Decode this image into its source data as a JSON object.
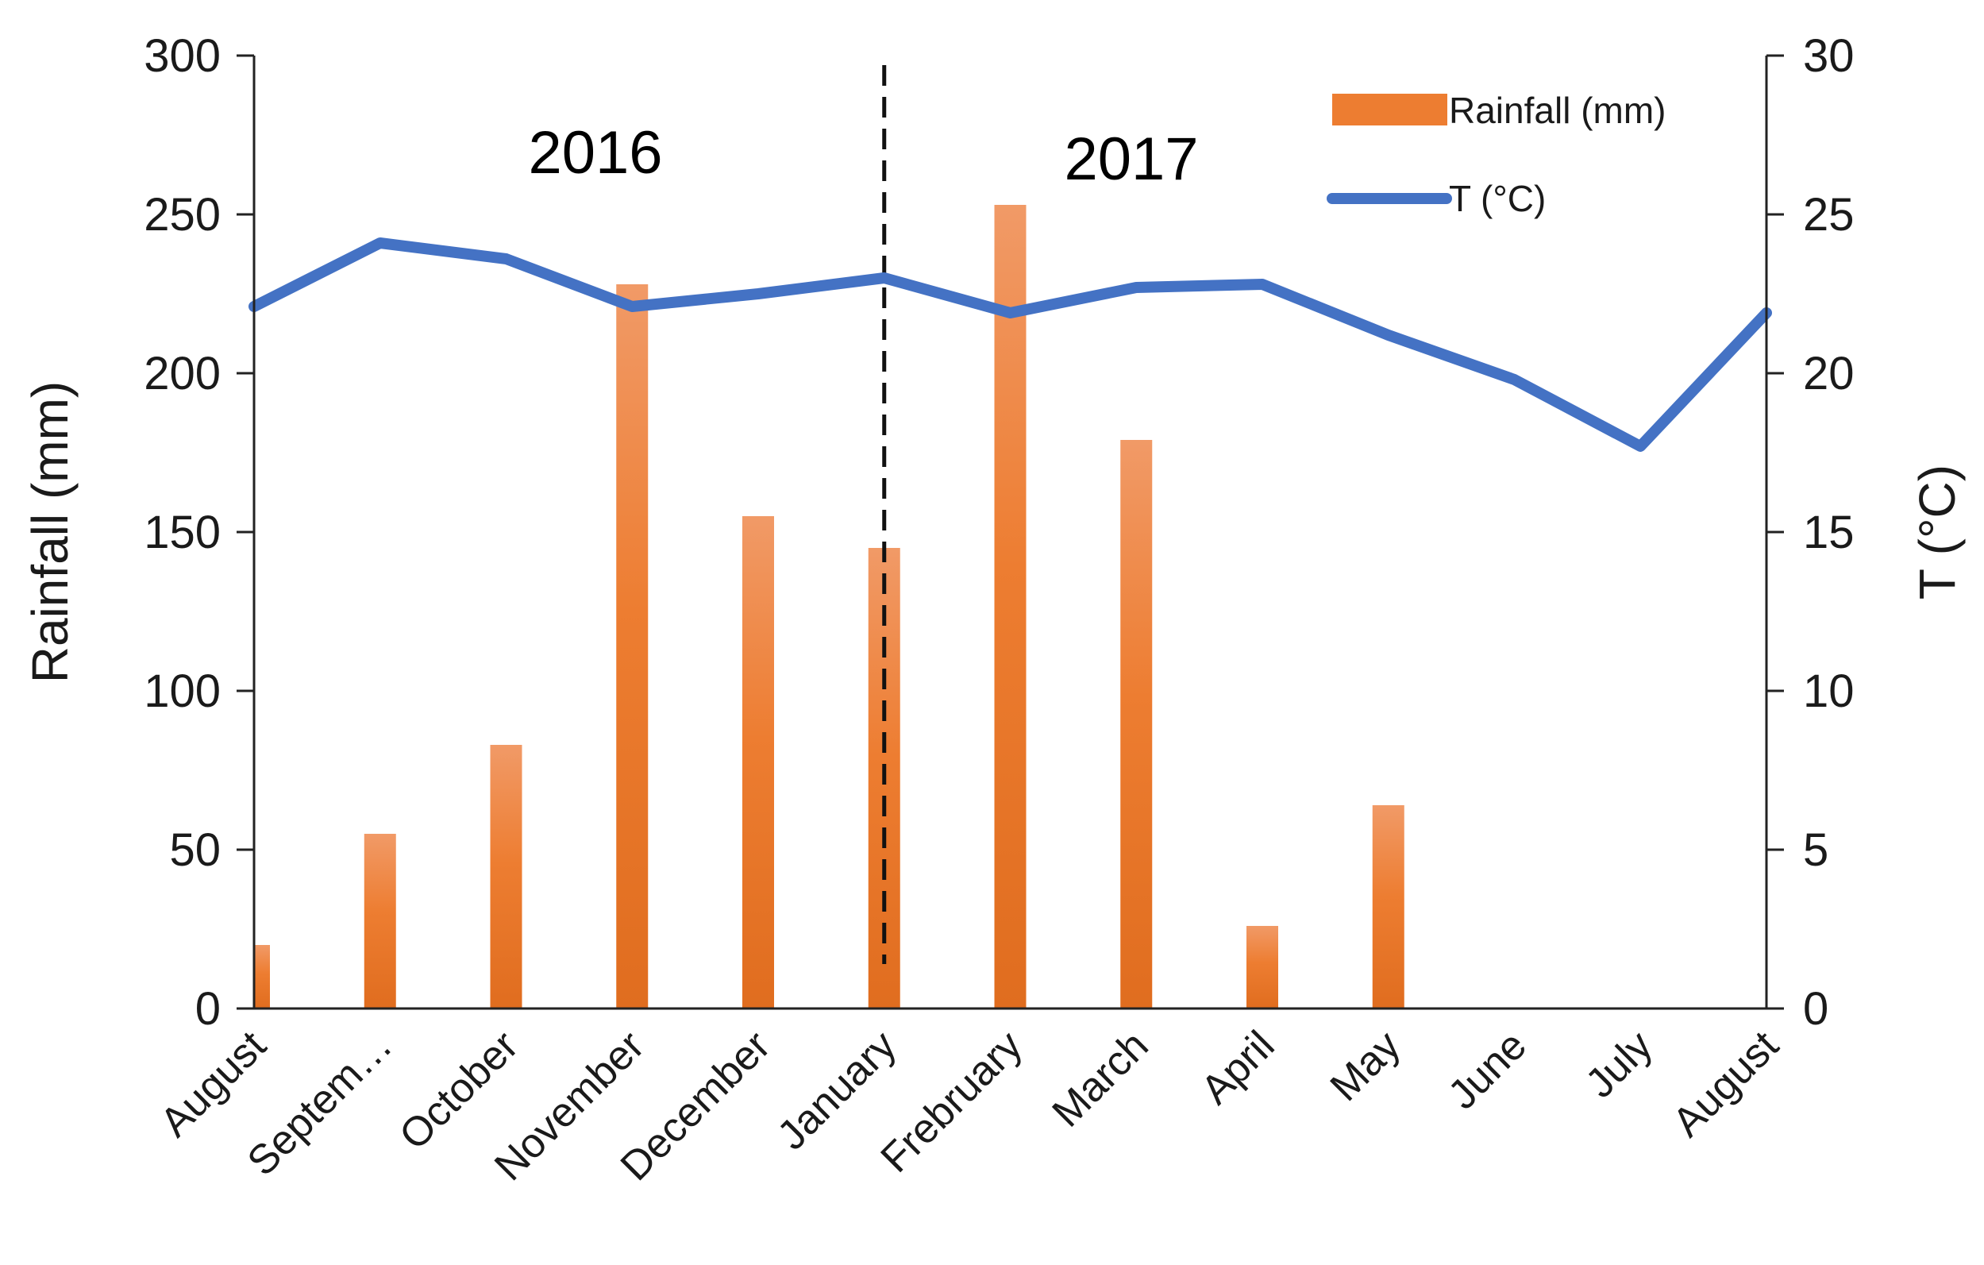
{
  "chart_data": {
    "type": "bar",
    "categories": [
      "August",
      "Septem…",
      "October",
      "November",
      "December",
      "January",
      "Frebruary",
      "March",
      "April",
      "May",
      "June",
      "July",
      "August"
    ],
    "series": [
      {
        "name": "Rainfall (mm)",
        "type": "bar",
        "axis": "left",
        "color": "#ed7d31",
        "values": [
          20,
          55,
          83,
          228,
          155,
          145,
          253,
          179,
          26,
          64,
          0,
          0,
          0
        ]
      },
      {
        "name": "T (°C)",
        "type": "line",
        "axis": "right",
        "color": "#4472c4",
        "values": [
          22.1,
          24.1,
          23.6,
          22.1,
          22.5,
          23.0,
          21.9,
          22.7,
          22.8,
          21.2,
          19.8,
          17.7,
          21.9
        ]
      }
    ],
    "ylabel": "Rainfall (mm)",
    "ylabel_right": "T (°C)",
    "ylim": [
      0,
      300
    ],
    "ylim_right": [
      0,
      30
    ],
    "yticks": [
      "0",
      "50",
      "100",
      "150",
      "200",
      "250",
      "300"
    ],
    "yticks_right": [
      "0",
      "5",
      "10",
      "15",
      "20",
      "25",
      "30"
    ],
    "annotations": [
      "2016",
      "2017"
    ],
    "divider_between": [
      "December",
      "January"
    ],
    "legend_position": "top-right",
    "grid": false
  }
}
